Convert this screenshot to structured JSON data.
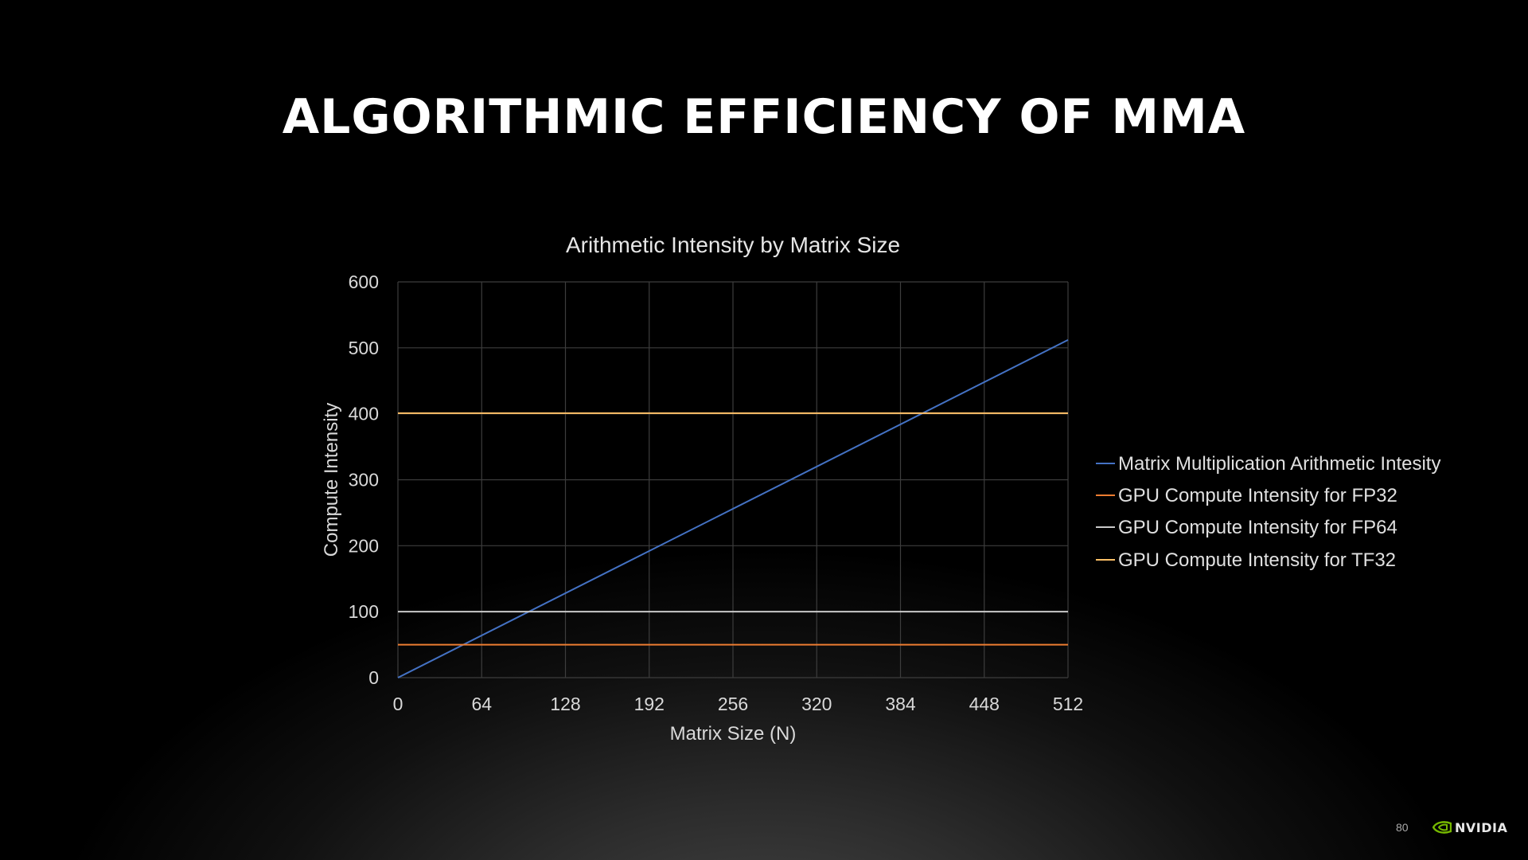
{
  "slide": {
    "title": "ALGORITHMIC EFFICIENCY OF MMA",
    "page_number": "80",
    "logo_text": "NVIDIA",
    "logo_color": "#76b900"
  },
  "chart_data": {
    "type": "line",
    "title": "Arithmetic Intensity by Matrix Size",
    "xlabel": "Matrix Size (N)",
    "ylabel": "Compute Intensity",
    "xlim": [
      0,
      512
    ],
    "ylim": [
      0,
      600
    ],
    "x_ticks": [
      0,
      64,
      128,
      192,
      256,
      320,
      384,
      448,
      512
    ],
    "y_ticks": [
      0,
      100,
      200,
      300,
      400,
      500,
      600
    ],
    "grid": true,
    "legend_position": "right",
    "series": [
      {
        "name": "Matrix Multiplication Arithmetic Intesity",
        "color": "#4472c4",
        "x": [
          0,
          512
        ],
        "y": [
          0,
          512
        ]
      },
      {
        "name": "GPU Compute Intensity for FP32",
        "color": "#ed7d31",
        "x": [
          0,
          512
        ],
        "y": [
          50,
          50
        ]
      },
      {
        "name": "GPU Compute Intensity for FP64",
        "color": "#c9c9c9",
        "x": [
          0,
          512
        ],
        "y": [
          100,
          100
        ]
      },
      {
        "name": "GPU Compute Intensity for TF32",
        "color": "#ffc067",
        "x": [
          0,
          512
        ],
        "y": [
          401,
          401
        ]
      }
    ]
  }
}
